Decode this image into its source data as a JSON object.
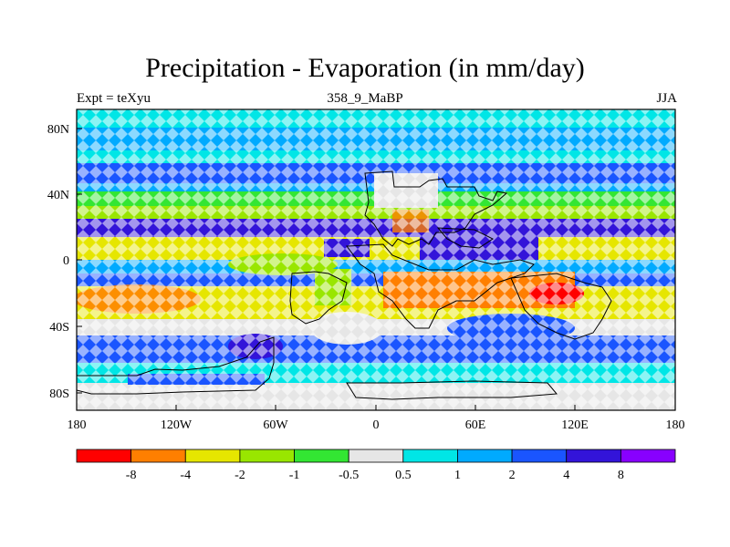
{
  "title": "Precipitation - Evaporation (in mm/day)",
  "subtitle_left": "Expt = teXyu",
  "subtitle_center": "358_9_MaBP",
  "subtitle_right": "JJA",
  "axes": {
    "x_ticks": [
      "180",
      "120W",
      "60W",
      "0",
      "60E",
      "120E",
      "180"
    ],
    "y_ticks": [
      "80N",
      "40N",
      "0",
      "40S",
      "80S"
    ]
  },
  "colorbar": {
    "colors": [
      "#ff0000",
      "#ff7f00",
      "#e6e600",
      "#99e600",
      "#33e633",
      "#e6e6e6",
      "#00e6e6",
      "#00aaff",
      "#1a55ff",
      "#3314d9",
      "#8800ff"
    ],
    "labels": [
      "-8",
      "-4",
      "-2",
      "-1",
      "-0.5",
      "0.5",
      "1",
      "2",
      "4",
      "8"
    ]
  },
  "chart_data": {
    "type": "heatmap",
    "title": "Precipitation - Evaporation (in mm/day)",
    "projection": "cylindrical equidistant",
    "lon_range": [
      -180,
      180
    ],
    "lat_range": [
      -90,
      90
    ],
    "levels": [
      -8,
      -4,
      -2,
      -1,
      -0.5,
      0.5,
      1,
      2,
      4,
      8
    ],
    "zonal_bands": [
      {
        "lat_from": 90,
        "lat_to": 78,
        "category": "0.5 to 1"
      },
      {
        "lat_from": 78,
        "lat_to": 65,
        "category": "1 to 2"
      },
      {
        "lat_from": 65,
        "lat_to": 55,
        "category": "0.5 to 1"
      },
      {
        "lat_from": 55,
        "lat_to": 42,
        "category": "2 to 4"
      },
      {
        "lat_from": 42,
        "lat_to": 37,
        "category": "1 to 2"
      },
      {
        "lat_from": 37,
        "lat_to": 28,
        "category": "-1 to -0.5"
      },
      {
        "lat_from": 28,
        "lat_to": 22,
        "category": "-2 to -1"
      },
      {
        "lat_from": 22,
        "lat_to": 12,
        "category": "4 to 8"
      },
      {
        "lat_from": 12,
        "lat_to": 0,
        "category": "-4 to -2"
      },
      {
        "lat_from": 0,
        "lat_to": -8,
        "category": "1 to 2"
      },
      {
        "lat_from": -8,
        "lat_to": -15,
        "category": "2 to 4"
      },
      {
        "lat_from": -15,
        "lat_to": -35,
        "category": "-8 to -4"
      },
      {
        "lat_from": -35,
        "lat_to": -45,
        "category": "-0.5 to 0.5"
      },
      {
        "lat_from": -45,
        "lat_to": -62,
        "category": "2 to 4"
      },
      {
        "lat_from": -62,
        "lat_to": -75,
        "category": "0.5 to 1"
      },
      {
        "lat_from": -75,
        "lat_to": -90,
        "category": "-0.5 to 0.5"
      }
    ]
  }
}
